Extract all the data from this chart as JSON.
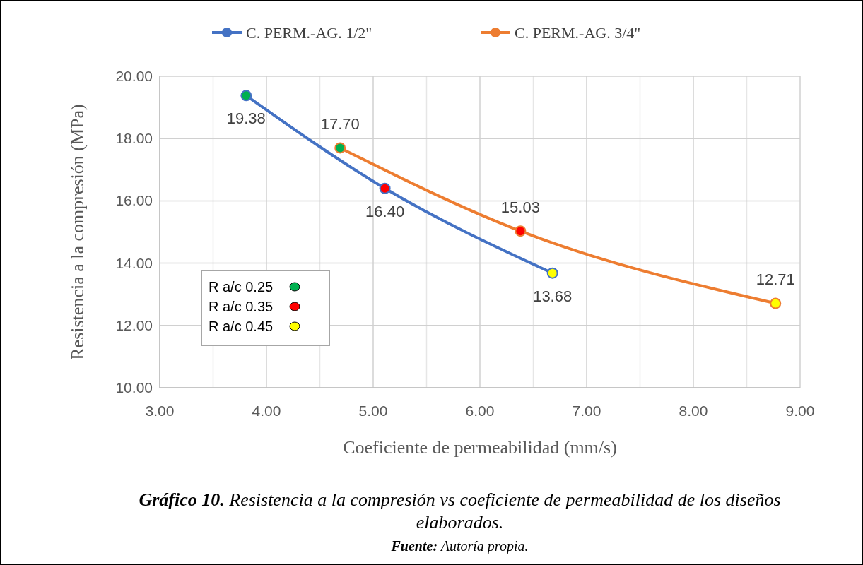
{
  "chart_data": {
    "type": "line",
    "title": "Gráfico 10. Resistencia a la compresión vs coeficiente de permeabilidad de los diseños elaborados.",
    "xlabel": "Coeficiente de permeabilidad (mm/s)",
    "ylabel": "Resistencia a la compresión (MPa)",
    "series": [
      {
        "name": "C. PERM.-AG. 1/2\"",
        "color": "#4472c4",
        "x": [
          3.81,
          5.11,
          6.68
        ],
        "values": [
          19.38,
          16.4,
          13.68
        ],
        "value_labels": [
          "19.38",
          "16.40",
          "13.68"
        ],
        "colors": [
          "#00b050",
          "#ff0000",
          "#ffff00"
        ]
      },
      {
        "name": "C. PERM.-AG. 3/4\"",
        "color": "#ed7d31",
        "x": [
          4.69,
          6.38,
          8.77
        ],
        "values": [
          17.7,
          15.03,
          12.71
        ],
        "value_labels": [
          "17.70",
          "15.03",
          "12.71"
        ],
        "colors": [
          "#00b050",
          "#ff0000",
          "#ffff00"
        ]
      }
    ],
    "xlim": [
      3,
      9
    ],
    "ylim": [
      10,
      20
    ],
    "xticks": [
      {
        "value": 3,
        "label": "3.00"
      },
      {
        "value": 3.5,
        "label": null
      },
      {
        "value": 4,
        "label": "4.00"
      },
      {
        "value": 4.5,
        "label": null
      },
      {
        "value": 5,
        "label": "5.00"
      },
      {
        "value": 5.5,
        "label": null
      },
      {
        "value": 6,
        "label": "6.00"
      },
      {
        "value": 6.5,
        "label": null
      },
      {
        "value": 7,
        "label": "7.00"
      },
      {
        "value": 7.5,
        "label": null
      },
      {
        "value": 8,
        "label": "8.00"
      },
      {
        "value": 8.5,
        "label": null
      },
      {
        "value": 9,
        "label": "9.00"
      }
    ],
    "yticks": [
      {
        "value": 10,
        "label": "10.00"
      },
      {
        "value": 12,
        "label": "12.00"
      },
      {
        "value": 14,
        "label": "14.00"
      },
      {
        "value": 16,
        "label": "16.00"
      },
      {
        "value": 18,
        "label": "18.00"
      },
      {
        "value": 20,
        "label": "20.00"
      }
    ],
    "grid": true,
    "legend": "top",
    "marker": "circle",
    "line_style": "solid",
    "annotations": [
      "R a/c 0.25",
      "R a/c 0.35",
      "R a/c 0.45",
      "Fuente: Autoría propia."
    ]
  }
}
